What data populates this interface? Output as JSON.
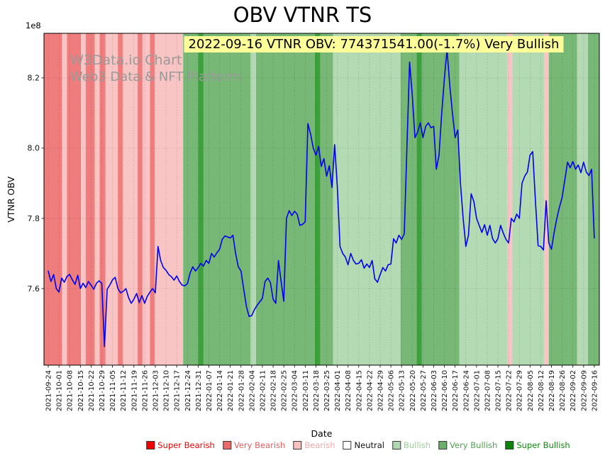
{
  "title": "OBV VTNR TS",
  "annotation": {
    "text": "2022-09-16 VTNR OBV: 774371541.00(-1.7%) Very Bullish",
    "bg_color": "#ffff99"
  },
  "watermark": {
    "line1": "W3Data.io Chart",
    "line2": "Web3 Data & NFT Platform"
  },
  "chart_data": {
    "type": "line",
    "title": "OBV VTNR TS",
    "xlabel": "Date",
    "ylabel": "VTNR OBV",
    "y_offset_label": "1e8",
    "ylim": [
      7.382,
      8.327
    ],
    "yticks": [
      7.6,
      7.8,
      8.0,
      8.2
    ],
    "ytick_labels": [
      "7.6",
      "7.8",
      "8.0",
      "8.2"
    ],
    "xlim_weeks": [
      -0.4,
      51.47
    ],
    "grid": "dotted",
    "legend_position": "bottom",
    "x_tick_labels": [
      "2021-09-24",
      "2021-10-01",
      "2021-10-08",
      "2021-10-15",
      "2021-10-22",
      "2021-10-29",
      "2021-11-05",
      "2021-11-12",
      "2021-11-19",
      "2021-11-26",
      "2021-12-03",
      "2021-12-10",
      "2021-12-17",
      "2021-12-24",
      "2021-12-31",
      "2022-01-07",
      "2022-01-14",
      "2022-01-21",
      "2022-01-28",
      "2022-02-04",
      "2022-02-11",
      "2022-02-18",
      "2022-02-25",
      "2022-03-04",
      "2022-03-11",
      "2022-03-18",
      "2022-03-25",
      "2022-04-01",
      "2022-04-08",
      "2022-04-15",
      "2022-04-22",
      "2022-04-29",
      "2022-05-06",
      "2022-05-13",
      "2022-05-20",
      "2022-05-27",
      "2022-06-03",
      "2022-06-10",
      "2022-06-17",
      "2022-06-24",
      "2022-07-01",
      "2022-07-08",
      "2022-07-15",
      "2022-07-22",
      "2022-07-29",
      "2022-08-05",
      "2022-08-12",
      "2022-08-19",
      "2022-08-26",
      "2022-09-02",
      "2022-09-09",
      "2022-09-16"
    ],
    "line": {
      "name": "VTNR OBV",
      "color": "#0000ee",
      "x_start_week": 0,
      "x_step_week": 0.25,
      "values_1e8": [
        7.65,
        7.62,
        7.64,
        7.6,
        7.59,
        7.63,
        7.618,
        7.635,
        7.64,
        7.625,
        7.612,
        7.638,
        7.6,
        7.615,
        7.603,
        7.62,
        7.61,
        7.598,
        7.615,
        7.622,
        7.615,
        7.435,
        7.598,
        7.61,
        7.625,
        7.632,
        7.6,
        7.588,
        7.592,
        7.6,
        7.574,
        7.558,
        7.57,
        7.586,
        7.56,
        7.58,
        7.558,
        7.578,
        7.59,
        7.6,
        7.588,
        7.72,
        7.68,
        7.66,
        7.652,
        7.64,
        7.634,
        7.624,
        7.636,
        7.62,
        7.61,
        7.608,
        7.614,
        7.645,
        7.662,
        7.65,
        7.66,
        7.672,
        7.664,
        7.68,
        7.672,
        7.7,
        7.69,
        7.702,
        7.712,
        7.74,
        7.75,
        7.747,
        7.744,
        7.752,
        7.7,
        7.662,
        7.65,
        7.6,
        7.55,
        7.521,
        7.523,
        7.54,
        7.552,
        7.562,
        7.572,
        7.62,
        7.63,
        7.617,
        7.57,
        7.558,
        7.68,
        7.62,
        7.564,
        7.8,
        7.822,
        7.808,
        7.82,
        7.812,
        7.78,
        7.783,
        7.79,
        8.07,
        8.04,
        8.0,
        7.98,
        8.005,
        7.948,
        7.97,
        7.92,
        7.95,
        7.888,
        8.01,
        7.89,
        7.72,
        7.7,
        7.69,
        7.668,
        7.7,
        7.68,
        7.67,
        7.672,
        7.682,
        7.658,
        7.67,
        7.66,
        7.68,
        7.628,
        7.618,
        7.64,
        7.66,
        7.65,
        7.668,
        7.67,
        7.742,
        7.73,
        7.752,
        7.74,
        7.756,
        8.0,
        8.245,
        8.15,
        8.03,
        8.046,
        8.072,
        8.03,
        8.062,
        8.072,
        8.058,
        8.062,
        7.94,
        7.98,
        8.1,
        8.2,
        8.28,
        8.18,
        8.1,
        8.03,
        8.052,
        7.9,
        7.8,
        7.72,
        7.752,
        7.87,
        7.848,
        7.8,
        7.78,
        7.76,
        7.782,
        7.752,
        7.78,
        7.742,
        7.73,
        7.742,
        7.78,
        7.758,
        7.74,
        7.73,
        7.8,
        7.79,
        7.812,
        7.8,
        7.9,
        7.92,
        7.932,
        7.98,
        7.99,
        7.85,
        7.722,
        7.72,
        7.71,
        7.85,
        7.73,
        7.712,
        7.76,
        7.8,
        7.832,
        7.86,
        7.91,
        7.96,
        7.944,
        7.962,
        7.94,
        7.952,
        7.93,
        7.96,
        7.932,
        7.922,
        7.94,
        7.744
      ]
    },
    "sentiment_colors": {
      "super_bearish": "#ee0000",
      "very_bearish": "#ef7d7d",
      "bearish": "#f9c4c4",
      "neutral": "#ffffff",
      "bullish": "#b4dab4",
      "very_bullish": "#77b877",
      "super_bullish": "#3da03d"
    },
    "bands_weeks": [
      [
        -0.4,
        1.3,
        "very_bearish"
      ],
      [
        1.3,
        1.75,
        "bearish"
      ],
      [
        1.75,
        3.05,
        "very_bearish"
      ],
      [
        3.05,
        3.5,
        "bearish"
      ],
      [
        3.5,
        4.35,
        "very_bearish"
      ],
      [
        4.35,
        4.8,
        "bearish"
      ],
      [
        4.8,
        5.35,
        "very_bearish"
      ],
      [
        5.35,
        6.5,
        "bearish"
      ],
      [
        6.5,
        6.95,
        "very_bearish"
      ],
      [
        6.95,
        8.35,
        "bearish"
      ],
      [
        8.35,
        8.8,
        "very_bearish"
      ],
      [
        8.8,
        9.5,
        "bearish"
      ],
      [
        9.5,
        9.95,
        "very_bearish"
      ],
      [
        9.95,
        12.6,
        "bearish"
      ],
      [
        12.6,
        14.0,
        "very_bullish"
      ],
      [
        14.0,
        14.5,
        "super_bullish"
      ],
      [
        14.5,
        18.9,
        "very_bullish"
      ],
      [
        18.9,
        19.4,
        "bullish"
      ],
      [
        19.4,
        24.9,
        "very_bullish"
      ],
      [
        24.9,
        25.4,
        "super_bullish"
      ],
      [
        25.4,
        26.6,
        "very_bullish"
      ],
      [
        26.6,
        32.9,
        "bullish"
      ],
      [
        32.9,
        34.4,
        "very_bullish"
      ],
      [
        34.4,
        34.9,
        "super_bullish"
      ],
      [
        34.9,
        38.4,
        "very_bullish"
      ],
      [
        38.4,
        42.9,
        "bullish"
      ],
      [
        42.9,
        43.35,
        "bearish"
      ],
      [
        43.35,
        46.3,
        "bullish"
      ],
      [
        46.3,
        46.75,
        "bearish"
      ],
      [
        46.75,
        49.4,
        "very_bullish"
      ],
      [
        49.4,
        50.4,
        "bullish"
      ],
      [
        50.4,
        51.47,
        "very_bullish"
      ]
    ],
    "legend": [
      {
        "key": "super_bearish",
        "label": "Super Bearish",
        "swatch": "#ee0000",
        "text": "#ee0000"
      },
      {
        "key": "very_bearish",
        "label": "Very Bearish",
        "swatch": "#ea6b6b",
        "text": "#e06060"
      },
      {
        "key": "bearish",
        "label": "Bearish",
        "swatch": "#f8c0c0",
        "text": "#f0a8a8"
      },
      {
        "key": "neutral",
        "label": "Neutral",
        "swatch": "#ffffff",
        "text": "#111111"
      },
      {
        "key": "bullish",
        "label": "Bullish",
        "swatch": "#b2d8b2",
        "text": "#9ccc9c"
      },
      {
        "key": "very_bullish",
        "label": "Very Bullish",
        "swatch": "#6cae6c",
        "text": "#55a055"
      },
      {
        "key": "super_bullish",
        "label": "Super Bullish",
        "swatch": "#0d840d",
        "text": "#0a8a0a"
      }
    ]
  }
}
